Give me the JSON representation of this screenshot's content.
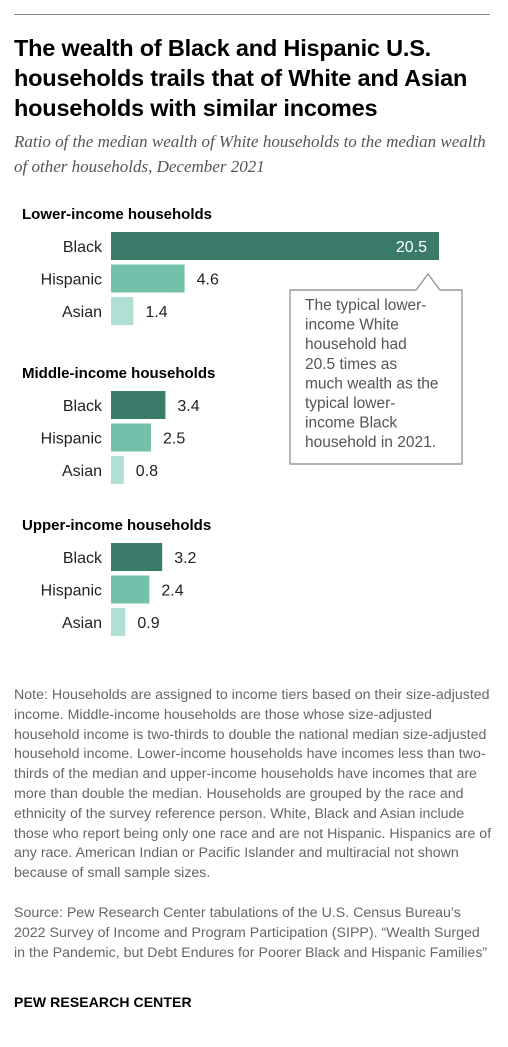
{
  "title": "The wealth of Black and Hispanic U.S. households trails that of White and Asian households with similar incomes",
  "subtitle": "Ratio of the median wealth of White households to the median wealth of other households, December 2021",
  "colors": {
    "Black": "#3a7c69",
    "Hispanic": "#74c1ab",
    "Asian": "#b2dfd3"
  },
  "chart_data": {
    "type": "bar",
    "orientation": "horizontal",
    "groups": [
      {
        "label": "Lower-income households",
        "categories": [
          "Black",
          "Hispanic",
          "Asian"
        ],
        "values": [
          20.5,
          4.6,
          1.4
        ],
        "value_labels": [
          "20.5",
          "4.6",
          "1.4"
        ]
      },
      {
        "label": "Middle-income households",
        "categories": [
          "Black",
          "Hispanic",
          "Asian"
        ],
        "values": [
          3.4,
          2.5,
          0.8
        ],
        "value_labels": [
          "3.4",
          "2.5",
          "0.8"
        ]
      },
      {
        "label": "Upper-income households",
        "categories": [
          "Black",
          "Hispanic",
          "Asian"
        ],
        "values": [
          3.2,
          2.4,
          0.9
        ],
        "value_labels": [
          "3.2",
          "2.4",
          "0.9"
        ]
      }
    ],
    "annotation": "The typical lower-income White household had 20.5 times as much wealth as the typical lower-income Black household in 2021.",
    "annotation_lines": [
      "The typical lower-",
      "income White",
      "household had",
      "20.5 times as",
      "much wealth as the",
      "typical lower-",
      "income Black",
      "household in 2021."
    ]
  },
  "note": "Note: Households are assigned to income tiers based on their size-adjusted income. Middle-income households are those whose size-adjusted household income is two-thirds to double the national median size-adjusted household income. Lower-income households have incomes less than two-thirds of the median and upper-income households have incomes that are more than double the median. Households are grouped by the race and ethnicity of the survey reference person. White, Black and Asian include those who report being only one race and are not Hispanic. Hispanics are of any race. American Indian or Pacific Islander and multiracial not shown because of small sample sizes.",
  "source": "Source: Pew Research Center tabulations of the U.S. Census Bureau’s 2022 Survey of Income and Program Participation (SIPP). “Wealth Surged in the Pandemic, but Debt Endures for Poorer Black and Hispanic Families”",
  "brand": "PEW RESEARCH CENTER"
}
